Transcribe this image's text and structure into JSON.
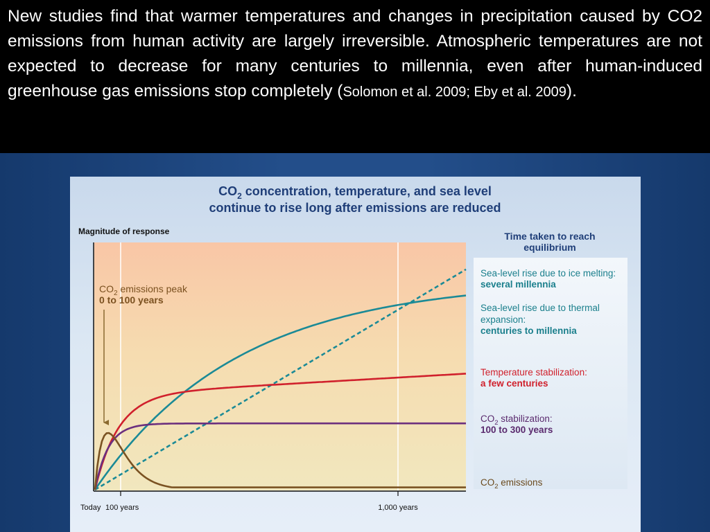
{
  "header": {
    "text_main": "New studies find that warmer temperatures and changes in precipitation caused by CO2 emissions from human activity are largely irreversible. Atmospheric temperatures are not expected to decrease for many centuries to millennia, even after human-induced greenhouse gas emissions stop completely (",
    "citation": "Solomon et al. 2009; Eby et al. 2009",
    "text_end": ")."
  },
  "chart_data": {
    "type": "line",
    "title_line1_prefix": "CO",
    "title_line1_sub": "2",
    "title_line1_rest": " concentration, temperature, and sea level",
    "title_line2": "continue to rise long after emissions are reduced",
    "ylabel": "Magnitude of response",
    "x_tick_labels": [
      "Today",
      "100 years",
      "1,000 years"
    ],
    "x_scale": "schematic (not to scale)",
    "y_scale": "relative, unlabeled",
    "legend_heading": [
      "Time taken to reach",
      "equilibrium"
    ],
    "annotation": {
      "line1_prefix": "CO",
      "line1_sub": "2",
      "line1_rest": " emissions peak",
      "line2": "0 to 100 years"
    },
    "series": [
      {
        "key": "sea_ice",
        "label": "Sea-level rise due to ice melting:",
        "detail": "several millennia",
        "color": "#1b8a96",
        "dashed": true
      },
      {
        "key": "sea_thermal",
        "label": "Sea-level rise due to thermal",
        "label2": "expansion:",
        "detail": "centuries to millennia",
        "color": "#1b8a96",
        "dashed": false
      },
      {
        "key": "temperature",
        "label": "Temperature stabilization:",
        "detail": "a few centuries",
        "color": "#d0202c",
        "dashed": false
      },
      {
        "key": "co2_stab",
        "label_prefix": "CO",
        "label_sub": "2",
        "label_rest": " stabilization:",
        "detail": "100 to 300 years",
        "color": "#6b2f7e",
        "dashed": false
      },
      {
        "key": "co2_emissions",
        "label_prefix": "CO",
        "label_sub": "2",
        "label_rest": " emissions",
        "detail": "",
        "color": "#7a5222",
        "dashed": false
      }
    ],
    "colors": {
      "legend_text": "#1a7f8c",
      "heading_text": "#1f3e78",
      "annotation_text": "#7b5120",
      "annotation_arrow": "#8a6a30"
    }
  }
}
